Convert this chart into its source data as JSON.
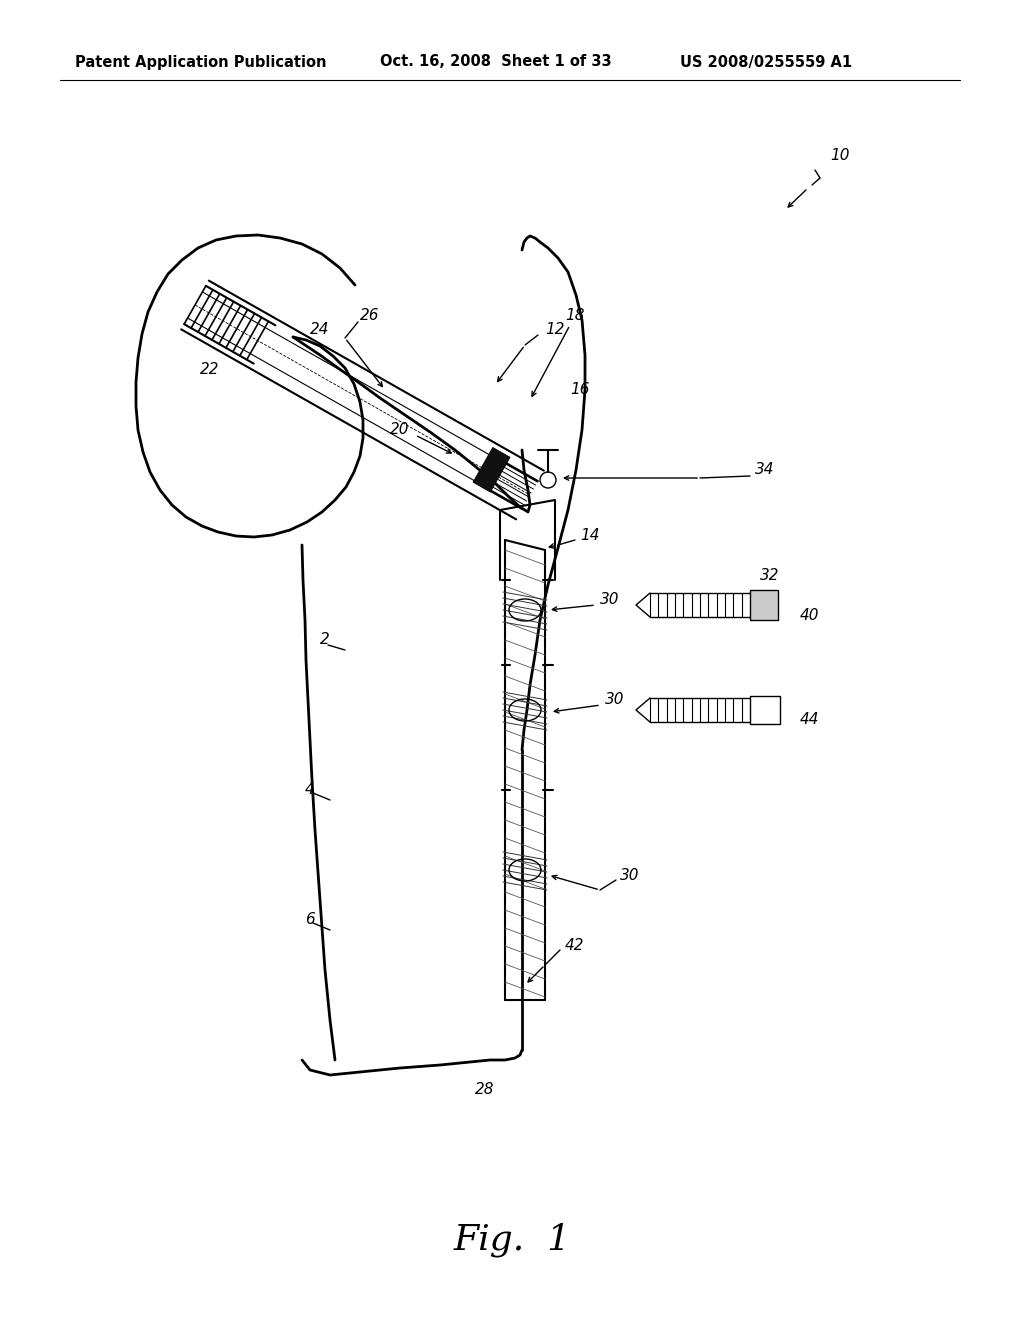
{
  "header_left": "Patent Application Publication",
  "header_mid": "Oct. 16, 2008  Sheet 1 of 33",
  "header_right": "US 2008/0255559 A1",
  "figure_label": "Fig.  1",
  "bg_color": "#ffffff",
  "line_color": "#000000",
  "header_fontsize": 10.5,
  "fig_label_fontsize": 26,
  "annotation_fontsize": 11
}
